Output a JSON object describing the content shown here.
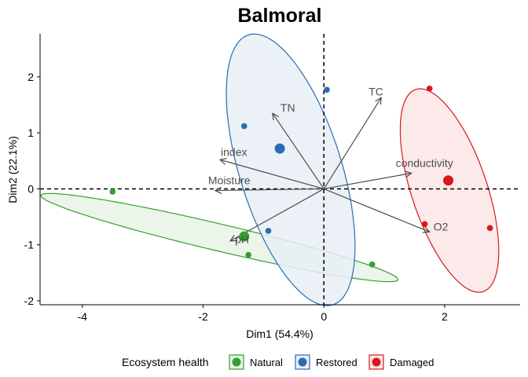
{
  "chart_data": {
    "type": "scatter",
    "title": "Balmoral",
    "xlabel": "Dim1 (54.4%)",
    "ylabel": "Dim2 (22.1%)",
    "xlim": [
      -4.7,
      3.25
    ],
    "ylim": [
      -2.07,
      2.77
    ],
    "x_ticks": [
      -4,
      -2,
      0,
      2
    ],
    "y_ticks": [
      -2,
      -1,
      0,
      1,
      2
    ],
    "grid": false,
    "reference_lines": {
      "x": 0,
      "y": 0,
      "style": "dashed"
    },
    "legend": {
      "title": "Ecosystem health",
      "position": "bottom",
      "entries": [
        "Natural",
        "Restored",
        "Damaged"
      ]
    },
    "groups": [
      {
        "name": "Natural",
        "color": "#33a02c",
        "fill": "#e8f3e5",
        "points": [
          [
            -3.5,
            -0.05
          ],
          [
            -1.25,
            -1.18
          ],
          [
            0.8,
            -1.35
          ]
        ],
        "centroid": [
          -1.32,
          -0.85
        ],
        "ellipse": {
          "center": [
            -1.73,
            -0.87
          ],
          "rx": 3.05,
          "ry": 0.24,
          "angle_deg": -14.3
        }
      },
      {
        "name": "Restored",
        "color": "#2b6cb0",
        "fill": "#e8eff6",
        "points": [
          [
            0.05,
            1.77
          ],
          [
            -1.32,
            1.12
          ],
          [
            -0.92,
            -0.75
          ]
        ],
        "centroid": [
          -0.73,
          0.72
        ],
        "ellipse": {
          "center": [
            -0.55,
            0.34
          ],
          "rx": 0.85,
          "ry": 2.51,
          "angle_deg": 15.8
        }
      },
      {
        "name": "Damaged",
        "color": "#d7191c",
        "fill": "#fbe5e6",
        "points": [
          [
            1.75,
            1.79
          ],
          [
            1.67,
            -0.63
          ],
          [
            2.75,
            -0.7
          ]
        ],
        "centroid": [
          2.06,
          0.15
        ],
        "ellipse": {
          "center": [
            2.08,
            -0.03
          ],
          "rx": 0.63,
          "ry": 1.89,
          "angle_deg": 16.9
        }
      }
    ],
    "variables": [
      {
        "name": "TC",
        "x": 0.95,
        "y": 1.63
      },
      {
        "name": "TN",
        "x": -0.85,
        "y": 1.35
      },
      {
        "name": "index",
        "x": -1.72,
        "y": 0.52
      },
      {
        "name": "Moisture",
        "x": -1.8,
        "y": -0.03
      },
      {
        "name": "pH",
        "x": -1.55,
        "y": -0.93
      },
      {
        "name": "conductivity",
        "x": 1.45,
        "y": 0.28
      },
      {
        "name": "O2",
        "x": 1.75,
        "y": -0.77
      }
    ]
  }
}
